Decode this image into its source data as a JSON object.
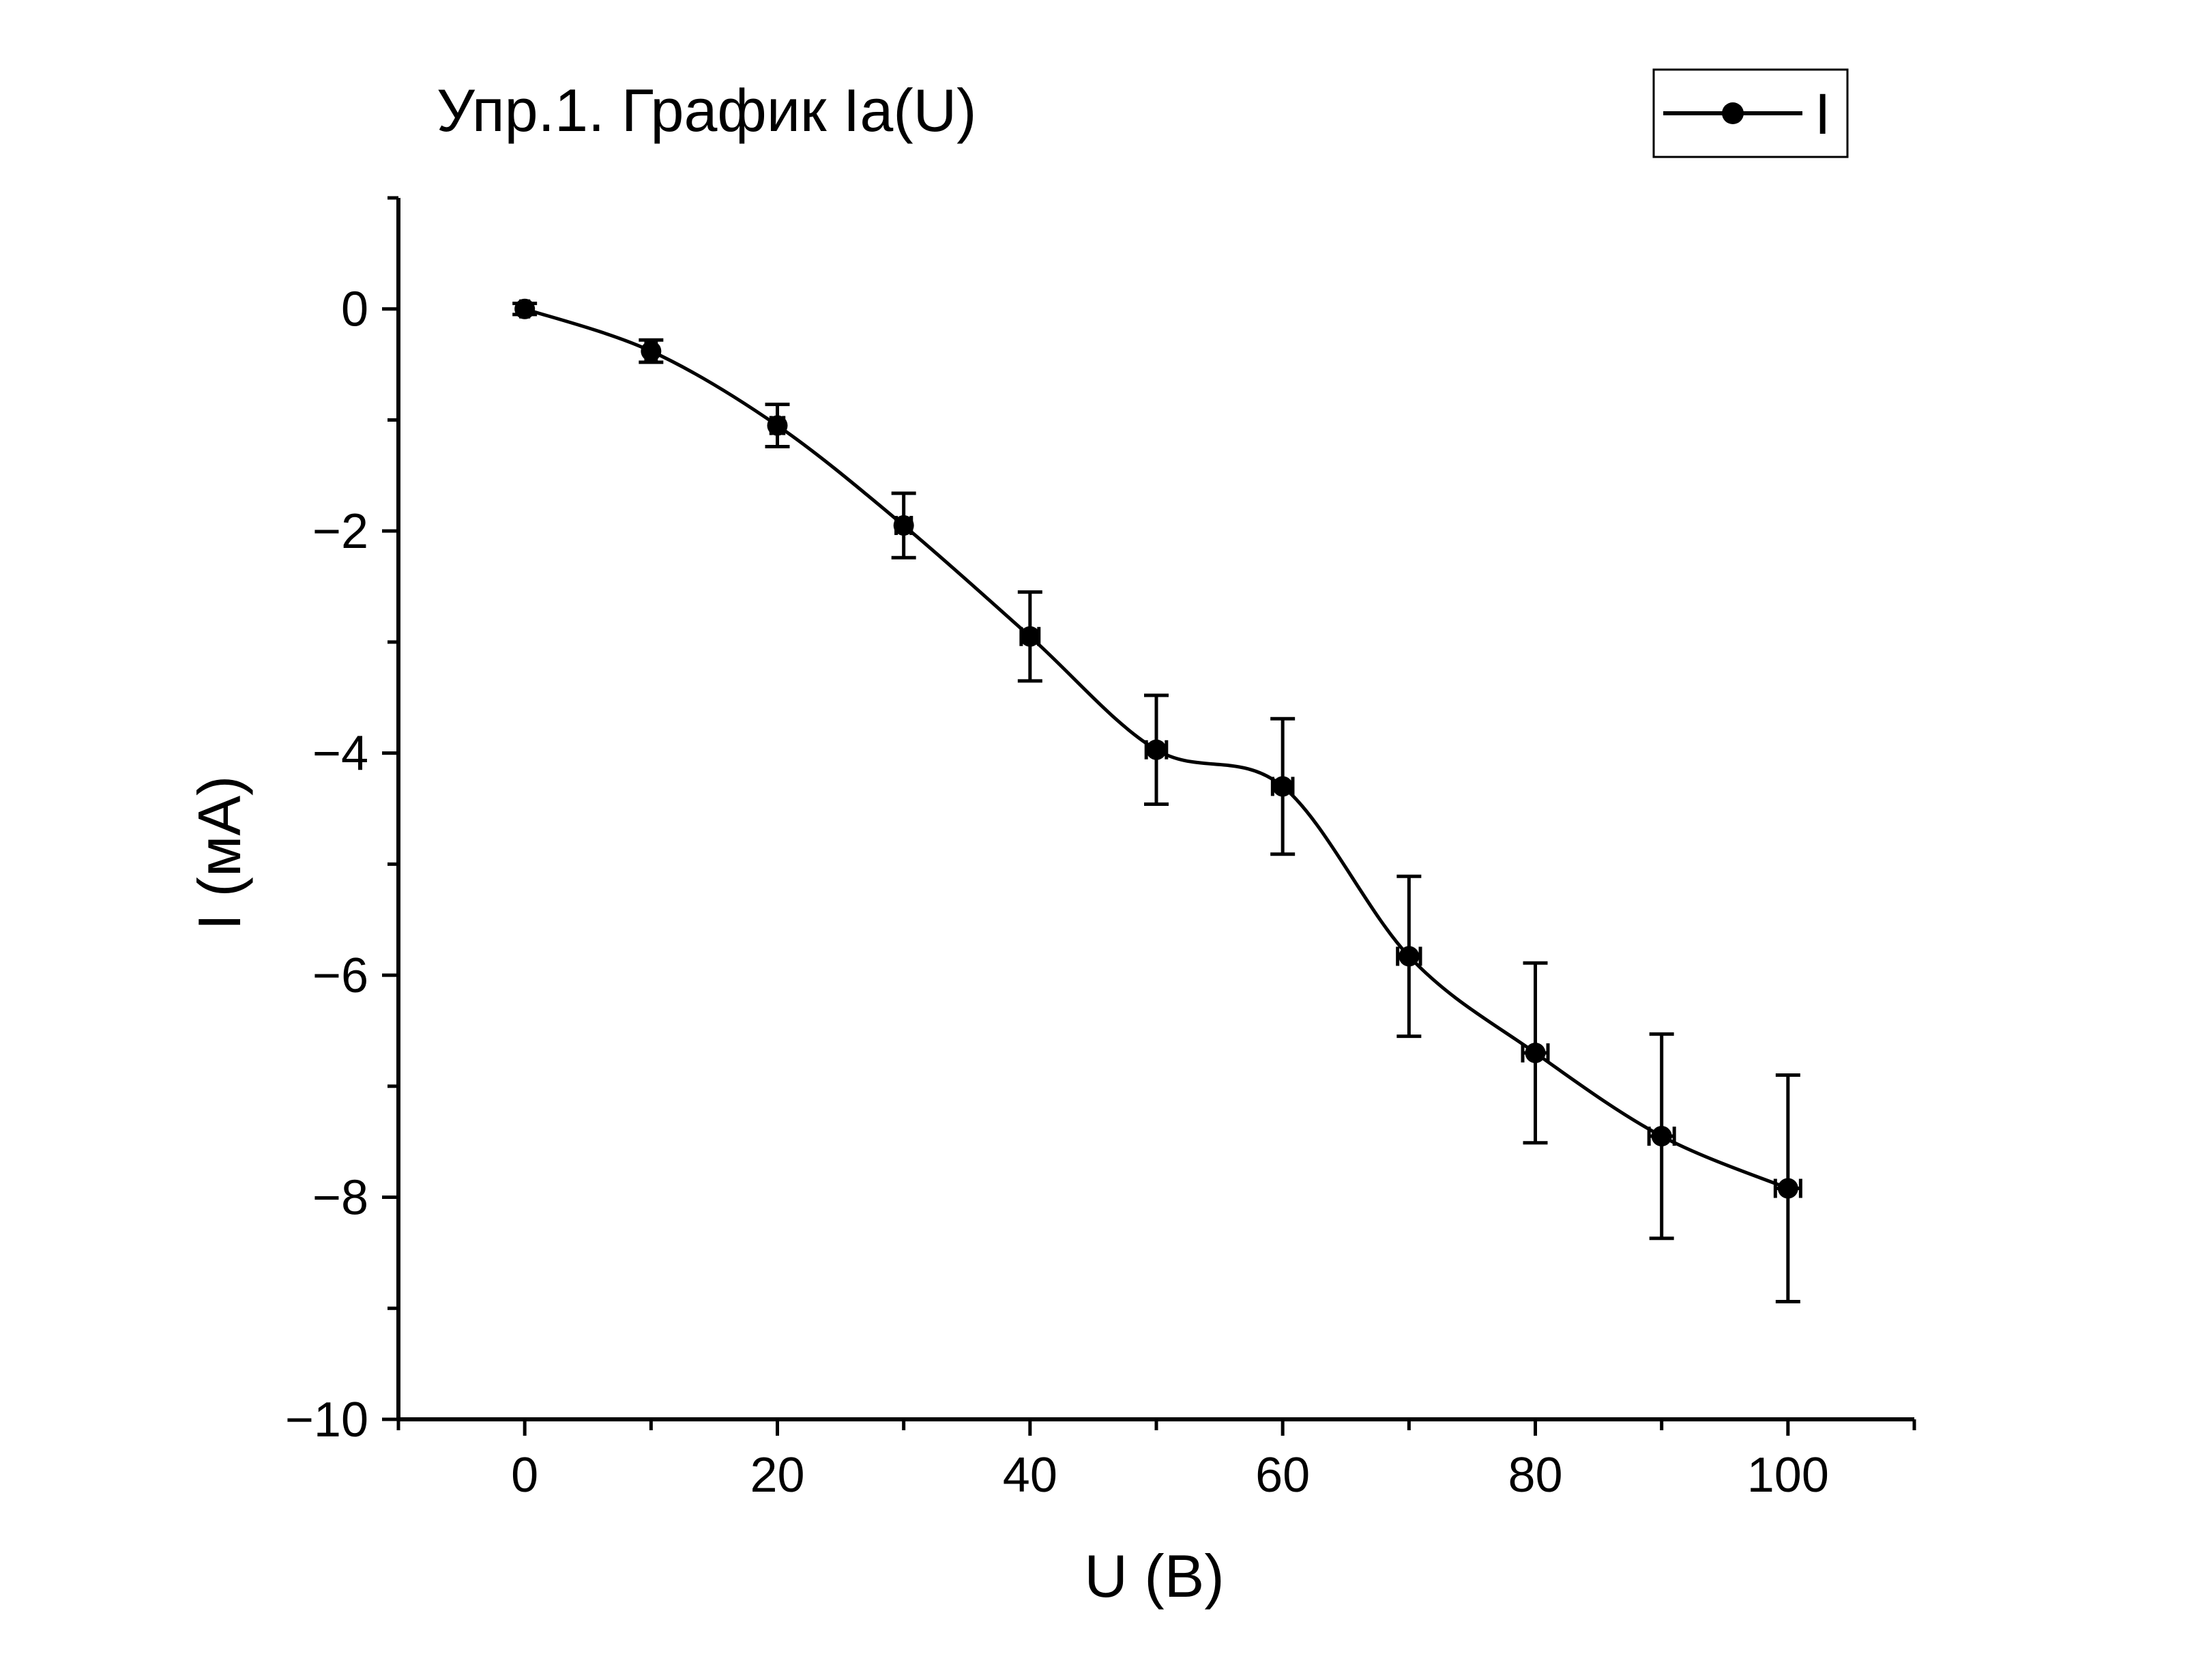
{
  "chart_data": {
    "type": "line",
    "title": "Упр.1. График Ia(U)",
    "xlabel": "U (В)",
    "ylabel": "I (мА)",
    "xlim": [
      -10,
      110
    ],
    "ylim": [
      -10,
      1
    ],
    "x_ticks": [
      0,
      20,
      40,
      60,
      80,
      100
    ],
    "x_tick_labels": [
      "0",
      "20",
      "40",
      "60",
      "80",
      "100"
    ],
    "y_ticks": [
      0,
      -2,
      -4,
      -6,
      -8,
      -10
    ],
    "y_tick_labels": [
      "0",
      "−2",
      "−4",
      "−6",
      "−8",
      "−10"
    ],
    "grid": false,
    "legend": {
      "position": "top-right",
      "entries": [
        "I"
      ]
    },
    "series": [
      {
        "name": "I",
        "color": "#000000",
        "marker": "circle",
        "smooth": true,
        "x": [
          0,
          10,
          20,
          30,
          40,
          50,
          60,
          70,
          80,
          90,
          100
        ],
        "y": [
          0,
          -0.38,
          -1.05,
          -1.95,
          -2.95,
          -3.97,
          -4.3,
          -5.83,
          -6.7,
          -7.45,
          -7.92
        ],
        "y_error": [
          0.05,
          0.1,
          0.19,
          0.29,
          0.4,
          0.49,
          0.61,
          0.72,
          0.81,
          0.92,
          1.02
        ],
        "x_error": [
          0.3,
          0.4,
          0.5,
          0.6,
          0.7,
          0.8,
          0.8,
          0.9,
          1.0,
          1.0,
          1.0
        ]
      }
    ]
  }
}
